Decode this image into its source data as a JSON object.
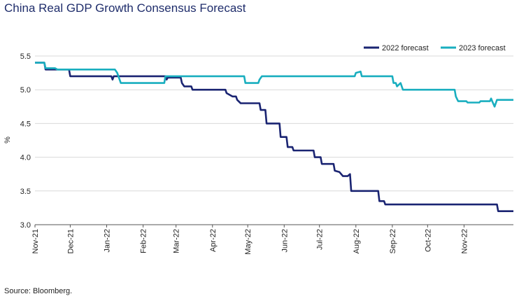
{
  "title": "China Real GDP Growth Consensus Forecast",
  "source": "Source: Bloomberg.",
  "chart_data": {
    "type": "line",
    "title": "China Real GDP Growth Consensus Forecast",
    "ylabel": "%",
    "xlabel": "",
    "ylim": [
      3.0,
      5.5
    ],
    "yticks": [
      "3.0",
      "3.5",
      "4.0",
      "4.5",
      "5.0",
      "5.5"
    ],
    "xticks": [
      "Nov-21",
      "Dec-21",
      "Jan-22",
      "Feb-22",
      "Mar-22",
      "Apr-22",
      "May-22",
      "Jun-22",
      "Jul-22",
      "Aug-22",
      "Sep-22",
      "Oct-22",
      "Nov-22"
    ],
    "xlim": [
      "2021-11-01",
      "2022-12-13"
    ],
    "grid": "horizontal",
    "legend_position": "top-right",
    "series": [
      {
        "name": "2022 forecast",
        "color": "#1a2472",
        "points": [
          [
            "2021-11-01",
            5.4
          ],
          [
            "2021-11-09",
            5.4
          ],
          [
            "2021-11-10",
            5.3
          ],
          [
            "2021-11-30",
            5.3
          ],
          [
            "2021-12-01",
            5.2
          ],
          [
            "2022-01-05",
            5.2
          ],
          [
            "2022-01-06",
            5.15
          ],
          [
            "2022-01-07",
            5.2
          ],
          [
            "2022-02-20",
            5.2
          ],
          [
            "2022-02-21",
            5.15
          ],
          [
            "2022-02-22",
            5.18
          ],
          [
            "2022-03-05",
            5.18
          ],
          [
            "2022-03-06",
            5.1
          ],
          [
            "2022-03-08",
            5.05
          ],
          [
            "2022-03-14",
            5.05
          ],
          [
            "2022-03-15",
            5.0
          ],
          [
            "2022-04-12",
            5.0
          ],
          [
            "2022-04-13",
            4.95
          ],
          [
            "2022-04-18",
            4.9
          ],
          [
            "2022-04-21",
            4.9
          ],
          [
            "2022-04-22",
            4.85
          ],
          [
            "2022-04-25",
            4.8
          ],
          [
            "2022-05-11",
            4.8
          ],
          [
            "2022-05-12",
            4.7
          ],
          [
            "2022-05-16",
            4.7
          ],
          [
            "2022-05-17",
            4.5
          ],
          [
            "2022-05-28",
            4.5
          ],
          [
            "2022-05-29",
            4.3
          ],
          [
            "2022-06-03",
            4.3
          ],
          [
            "2022-06-04",
            4.15
          ],
          [
            "2022-06-08",
            4.15
          ],
          [
            "2022-06-09",
            4.1
          ],
          [
            "2022-06-26",
            4.1
          ],
          [
            "2022-06-27",
            4.0
          ],
          [
            "2022-07-02",
            4.0
          ],
          [
            "2022-07-03",
            3.9
          ],
          [
            "2022-07-13",
            3.9
          ],
          [
            "2022-07-14",
            3.8
          ],
          [
            "2022-07-18",
            3.78
          ],
          [
            "2022-07-21",
            3.72
          ],
          [
            "2022-07-25",
            3.72
          ],
          [
            "2022-07-27",
            3.75
          ],
          [
            "2022-07-28",
            3.5
          ],
          [
            "2022-08-20",
            3.5
          ],
          [
            "2022-08-21",
            3.35
          ],
          [
            "2022-08-25",
            3.35
          ],
          [
            "2022-08-26",
            3.3
          ],
          [
            "2022-11-29",
            3.3
          ],
          [
            "2022-11-30",
            3.2
          ],
          [
            "2022-12-13",
            3.2
          ]
        ]
      },
      {
        "name": "2023 forecast",
        "color": "#19aebf",
        "points": [
          [
            "2021-11-01",
            5.4
          ],
          [
            "2021-11-09",
            5.4
          ],
          [
            "2021-11-10",
            5.32
          ],
          [
            "2021-11-18",
            5.32
          ],
          [
            "2021-11-20",
            5.3
          ],
          [
            "2022-01-08",
            5.3
          ],
          [
            "2022-01-10",
            5.25
          ],
          [
            "2022-01-11",
            5.2
          ],
          [
            "2022-01-13",
            5.1
          ],
          [
            "2022-02-19",
            5.1
          ],
          [
            "2022-02-20",
            5.2
          ],
          [
            "2022-04-28",
            5.2
          ],
          [
            "2022-04-29",
            5.1
          ],
          [
            "2022-05-10",
            5.1
          ],
          [
            "2022-05-11",
            5.15
          ],
          [
            "2022-05-13",
            5.2
          ],
          [
            "2022-07-31",
            5.2
          ],
          [
            "2022-08-01",
            5.25
          ],
          [
            "2022-08-05",
            5.27
          ],
          [
            "2022-08-06",
            5.2
          ],
          [
            "2022-09-01",
            5.2
          ],
          [
            "2022-09-02",
            5.1
          ],
          [
            "2022-09-04",
            5.1
          ],
          [
            "2022-09-05",
            5.05
          ],
          [
            "2022-09-08",
            5.1
          ],
          [
            "2022-09-10",
            5.0
          ],
          [
            "2022-10-24",
            5.0
          ],
          [
            "2022-10-25",
            4.9
          ],
          [
            "2022-10-27",
            4.83
          ],
          [
            "2022-11-03",
            4.83
          ],
          [
            "2022-11-04",
            4.81
          ],
          [
            "2022-11-14",
            4.81
          ],
          [
            "2022-11-15",
            4.83
          ],
          [
            "2022-11-23",
            4.83
          ],
          [
            "2022-11-24",
            4.87
          ],
          [
            "2022-11-25",
            4.83
          ],
          [
            "2022-11-27",
            4.75
          ],
          [
            "2022-11-29",
            4.85
          ],
          [
            "2022-12-13",
            4.85
          ]
        ]
      }
    ]
  }
}
